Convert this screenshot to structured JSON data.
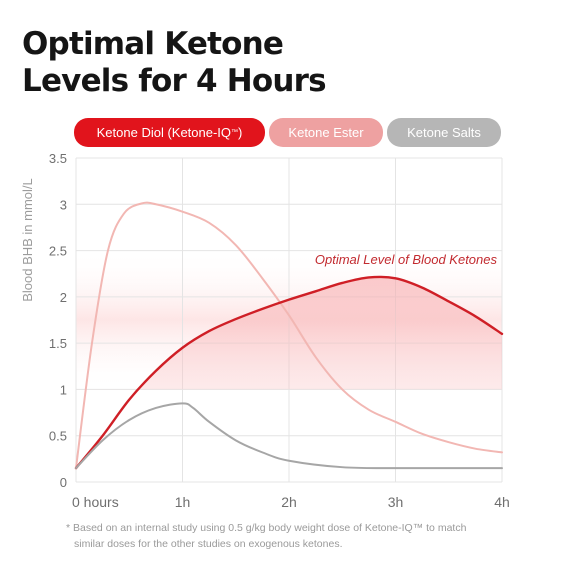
{
  "title": {
    "line1": "Optimal Ketone",
    "line2": "Levels for 4 Hours"
  },
  "legend": {
    "diol_label": "Ketone Diol (Ketone-IQ",
    "diol_tm": "™",
    "diol_close": ")",
    "ester_label": "Ketone Ester",
    "salts_label": "Ketone Salts"
  },
  "colors": {
    "diol": "#cf1f26",
    "ester": "#f2b7b3",
    "salts": "#a6a6a6",
    "optimal_band": "#fde4e4",
    "grid": "#e4e4e4"
  },
  "footnote": {
    "line1": "* Based on an internal study using 0.5 g/kg body weight dose of Ketone-IQ™ to match",
    "line2": "similar doses for the other studies on exogenous ketones."
  },
  "chart_data": {
    "type": "line",
    "ylabel": "Blood BHB in mmol/L",
    "xlabel": "",
    "xlim": [
      0,
      4
    ],
    "ylim": [
      0,
      3.5
    ],
    "x_ticks": [
      {
        "value": 0,
        "label": "0 hours"
      },
      {
        "value": 1,
        "label": "1h"
      },
      {
        "value": 2,
        "label": "2h"
      },
      {
        "value": 3,
        "label": "3h"
      },
      {
        "value": 4,
        "label": "4h"
      }
    ],
    "y_ticks": [
      {
        "value": 0,
        "label": "0"
      },
      {
        "value": 0.5,
        "label": "0.5"
      },
      {
        "value": 1,
        "label": "1"
      },
      {
        "value": 1.5,
        "label": "1.5"
      },
      {
        "value": 2,
        "label": "2"
      },
      {
        "value": 2.5,
        "label": "2.5"
      },
      {
        "value": 3,
        "label": "3"
      },
      {
        "value": 3.5,
        "label": "3.5"
      }
    ],
    "grid": true,
    "optimal_range": [
      1,
      2.5
    ],
    "annotation": "Optimal Level of Blood Ketones",
    "series": [
      {
        "name": "Ketone Ester",
        "color_key": "ester",
        "points": [
          [
            0,
            0.15
          ],
          [
            0.15,
            1.5
          ],
          [
            0.3,
            2.5
          ],
          [
            0.45,
            2.9
          ],
          [
            0.62,
            3.01
          ],
          [
            0.75,
            3.0
          ],
          [
            1.0,
            2.92
          ],
          [
            1.25,
            2.8
          ],
          [
            1.5,
            2.56
          ],
          [
            1.75,
            2.2
          ],
          [
            2.0,
            1.8
          ],
          [
            2.25,
            1.35
          ],
          [
            2.5,
            1.0
          ],
          [
            2.75,
            0.78
          ],
          [
            3.0,
            0.65
          ],
          [
            3.25,
            0.52
          ],
          [
            3.5,
            0.43
          ],
          [
            3.75,
            0.36
          ],
          [
            4.0,
            0.32
          ]
        ]
      },
      {
        "name": "Ketone Diol (Ketone-IQ™)",
        "color_key": "diol",
        "points": [
          [
            0,
            0.15
          ],
          [
            0.25,
            0.5
          ],
          [
            0.5,
            0.89
          ],
          [
            0.75,
            1.2
          ],
          [
            1.0,
            1.45
          ],
          [
            1.25,
            1.63
          ],
          [
            1.5,
            1.76
          ],
          [
            1.75,
            1.87
          ],
          [
            2.0,
            1.97
          ],
          [
            2.25,
            2.06
          ],
          [
            2.5,
            2.15
          ],
          [
            2.75,
            2.21
          ],
          [
            3.0,
            2.2
          ],
          [
            3.25,
            2.1
          ],
          [
            3.5,
            1.95
          ],
          [
            3.75,
            1.79
          ],
          [
            4.0,
            1.6
          ]
        ]
      },
      {
        "name": "Ketone Salts",
        "color_key": "salts",
        "points": [
          [
            0,
            0.15
          ],
          [
            0.25,
            0.45
          ],
          [
            0.5,
            0.67
          ],
          [
            0.75,
            0.8
          ],
          [
            1.0,
            0.85
          ],
          [
            1.1,
            0.8
          ],
          [
            1.25,
            0.65
          ],
          [
            1.5,
            0.45
          ],
          [
            1.75,
            0.32
          ],
          [
            2.0,
            0.23
          ],
          [
            2.5,
            0.16
          ],
          [
            3.0,
            0.15
          ],
          [
            4.0,
            0.15
          ]
        ]
      }
    ]
  }
}
